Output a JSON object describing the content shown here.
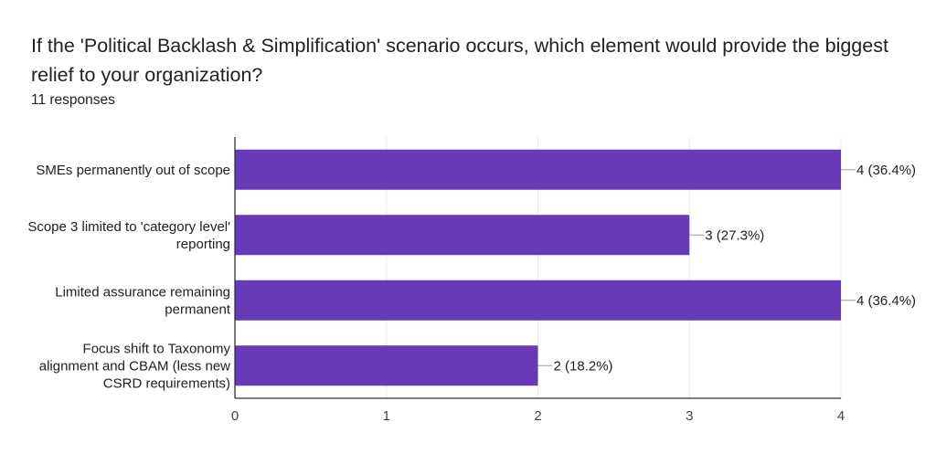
{
  "question": {
    "title": "If the 'Political Backlash & Simplification' scenario occurs, which element would provide the biggest relief to your organization?",
    "responses": "11 responses"
  },
  "colors": {
    "bar": "#673ab7",
    "grid": "#ebebeb",
    "axis": "#333333",
    "leader": "#9e9e9e"
  },
  "chart_data": {
    "type": "bar",
    "orientation": "horizontal",
    "title": "If the 'Political Backlash & Simplification' scenario occurs, which element would provide the biggest relief to your organization?",
    "categories": [
      [
        "SMEs permanently out of scope"
      ],
      [
        "Scope 3 limited to 'category level'",
        "reporting"
      ],
      [
        "Limited assurance remaining",
        "permanent"
      ],
      [
        "Focus shift to Taxonomy",
        "alignment and CBAM (less new",
        "CSRD requirements)"
      ]
    ],
    "values": [
      4,
      3,
      4,
      2
    ],
    "data_labels": [
      "4 (36.4%)",
      "3 (27.3%)",
      "4 (36.4%)",
      "2 (18.2%)"
    ],
    "xticks": [
      "0",
      "1",
      "2",
      "3",
      "4"
    ],
    "xlim": [
      0,
      4
    ],
    "grid": true,
    "legend": "none"
  }
}
